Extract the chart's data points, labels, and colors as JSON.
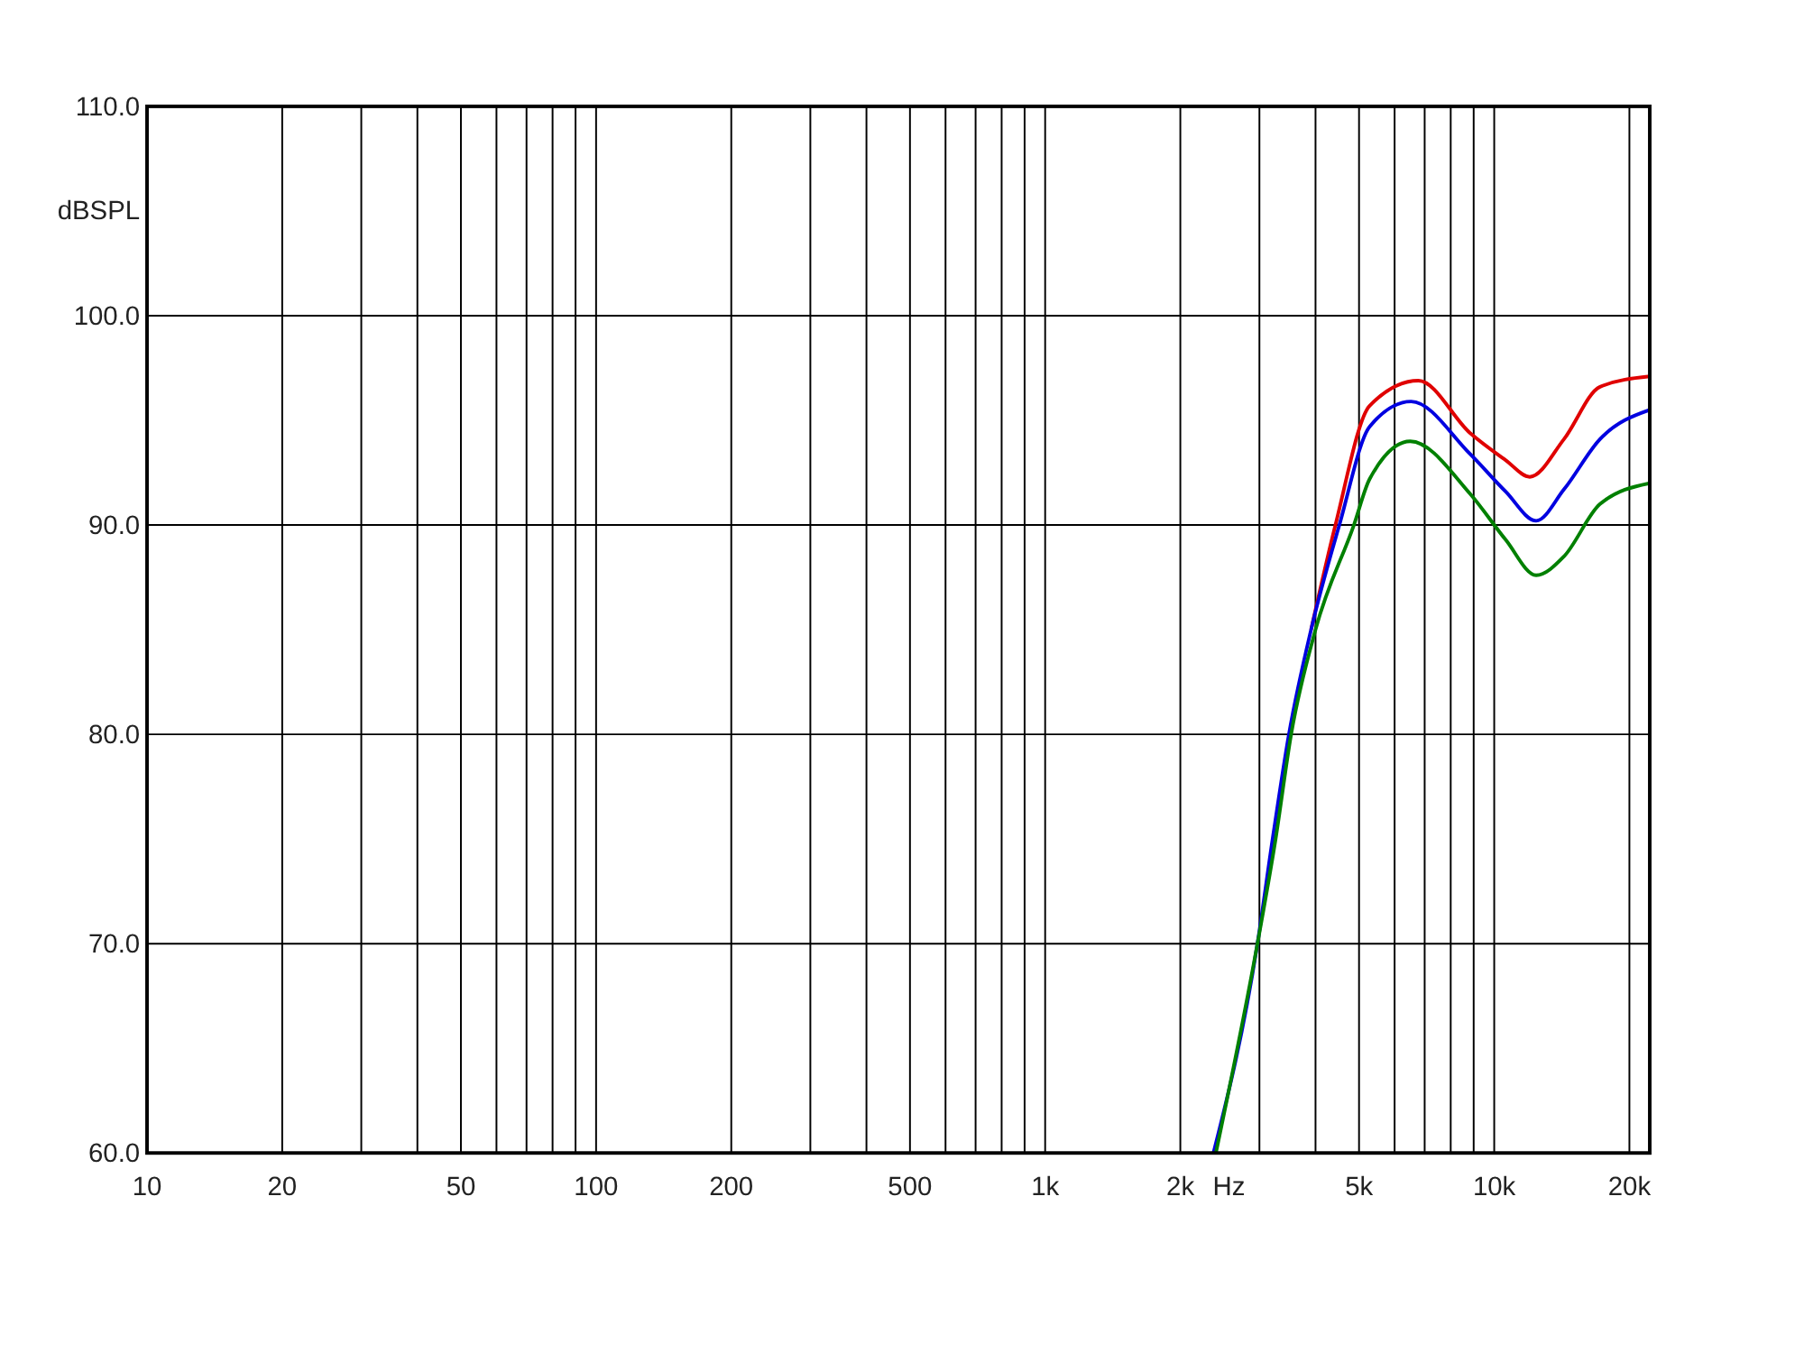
{
  "chart_data": {
    "type": "line",
    "xlabel": "Hz",
    "ylabel": "dBSPL",
    "log": "x",
    "grid": true,
    "line_style": "solid",
    "marker": "none",
    "xlim": [
      10,
      22200
    ],
    "ylim": [
      60,
      110
    ],
    "xticks": [
      10,
      20,
      {
        "value": 30,
        "label": null
      },
      {
        "value": 40,
        "label": null
      },
      50,
      {
        "value": 60,
        "label": null
      },
      {
        "value": 70,
        "label": null
      },
      {
        "value": 80,
        "label": null
      },
      {
        "value": 90,
        "label": null
      },
      100,
      200,
      {
        "value": 300,
        "label": null
      },
      {
        "value": 400,
        "label": null
      },
      500,
      {
        "value": 600,
        "label": null
      },
      {
        "value": 700,
        "label": null
      },
      {
        "value": 800,
        "label": null
      },
      {
        "value": 900,
        "label": null
      },
      {
        "value": 1000,
        "label": "1k"
      },
      {
        "value": 2000,
        "label": "2k"
      },
      {
        "value": 3000,
        "label": null
      },
      {
        "value": 4000,
        "label": null
      },
      {
        "value": 5000,
        "label": "5k"
      },
      {
        "value": 6000,
        "label": null
      },
      {
        "value": 7000,
        "label": null
      },
      {
        "value": 8000,
        "label": null
      },
      {
        "value": 9000,
        "label": null
      },
      {
        "value": 10000,
        "label": "10k"
      },
      {
        "value": 20000,
        "label": "20k"
      }
    ],
    "yticks": [
      {
        "value": 60,
        "label": "60.0"
      },
      {
        "value": 70,
        "label": "70.0"
      },
      {
        "value": 80,
        "label": "80.0"
      },
      {
        "value": 90,
        "label": "90.0"
      },
      {
        "value": 100,
        "label": "100.0"
      },
      {
        "value": 110,
        "label": "110.0"
      }
    ],
    "series": [
      {
        "color": "#e00000",
        "x": [
          3910,
          4430,
          5280,
          6780,
          8830,
          10600,
          12000,
          14300,
          17200,
          22200
        ],
        "values": [
          85,
          90,
          95.7,
          96.9,
          94.4,
          93.1,
          92.3,
          94.1,
          96.6,
          97.1
        ]
      },
      {
        "color": "#0000e0",
        "x": [
          2370,
          2970,
          3210,
          3490,
          3910,
          4520,
          5280,
          6530,
          8830,
          10600,
          12400,
          14300,
          17200,
          22200
        ],
        "values": [
          60,
          70,
          75,
          80,
          85,
          90,
          94.7,
          95.9,
          93.4,
          91.6,
          90.2,
          91.7,
          94.1,
          95.5
        ]
      },
      {
        "color": "#008000",
        "x": [
          2400,
          2970,
          3260,
          3530,
          4000,
          4870,
          5280,
          6500,
          8830,
          10600,
          12400,
          14300,
          17200,
          22200
        ],
        "values": [
          60,
          70,
          75,
          80,
          85,
          90,
          92.2,
          94.0,
          91.5,
          89.3,
          87.6,
          88.5,
          91.0,
          92.0
        ]
      }
    ]
  }
}
